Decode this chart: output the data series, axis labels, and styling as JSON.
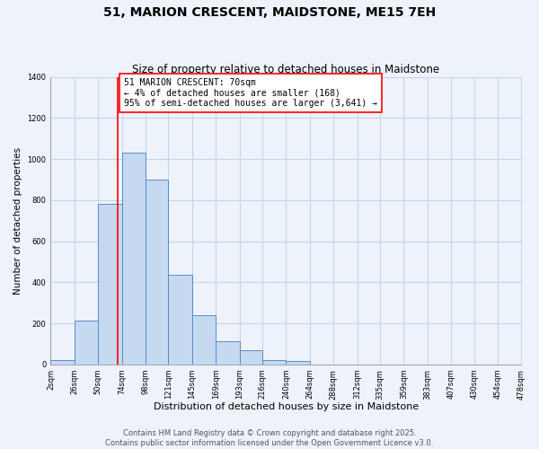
{
  "title": "51, MARION CRESCENT, MAIDSTONE, ME15 7EH",
  "subtitle": "Size of property relative to detached houses in Maidstone",
  "xlabel": "Distribution of detached houses by size in Maidstone",
  "ylabel": "Number of detached properties",
  "bar_edges": [
    2,
    26,
    50,
    74,
    98,
    121,
    145,
    169,
    193,
    216,
    240,
    264,
    288,
    312,
    335,
    359,
    383,
    407,
    430,
    454,
    478
  ],
  "bar_heights": [
    20,
    215,
    780,
    1030,
    900,
    435,
    242,
    112,
    68,
    20,
    18,
    0,
    0,
    0,
    0,
    0,
    0,
    0,
    0,
    0
  ],
  "bar_color": "#c5d9f0",
  "bar_edge_color": "#5b8cc8",
  "vline_x": 70,
  "vline_color": "red",
  "annotation_text": "51 MARION CRESCENT: 70sqm\n← 4% of detached houses are smaller (168)\n95% of semi-detached houses are larger (3,641) →",
  "annotation_box_color": "white",
  "annotation_box_edge_color": "red",
  "ylim": [
    0,
    1400
  ],
  "yticks": [
    0,
    200,
    400,
    600,
    800,
    1000,
    1200,
    1400
  ],
  "tick_labels": [
    "2sqm",
    "26sqm",
    "50sqm",
    "74sqm",
    "98sqm",
    "121sqm",
    "145sqm",
    "169sqm",
    "193sqm",
    "216sqm",
    "240sqm",
    "264sqm",
    "288sqm",
    "312sqm",
    "335sqm",
    "359sqm",
    "383sqm",
    "407sqm",
    "430sqm",
    "454sqm",
    "478sqm"
  ],
  "grid_color": "#c8d4e8",
  "background_color": "#edf2fb",
  "footer_line1": "Contains HM Land Registry data © Crown copyright and database right 2025.",
  "footer_line2": "Contains public sector information licensed under the Open Government Licence v3.0.",
  "title_fontsize": 10,
  "subtitle_fontsize": 8.5,
  "xlabel_fontsize": 8,
  "ylabel_fontsize": 7.5,
  "annotation_fontsize": 7,
  "footer_fontsize": 6,
  "tick_fontsize": 6
}
